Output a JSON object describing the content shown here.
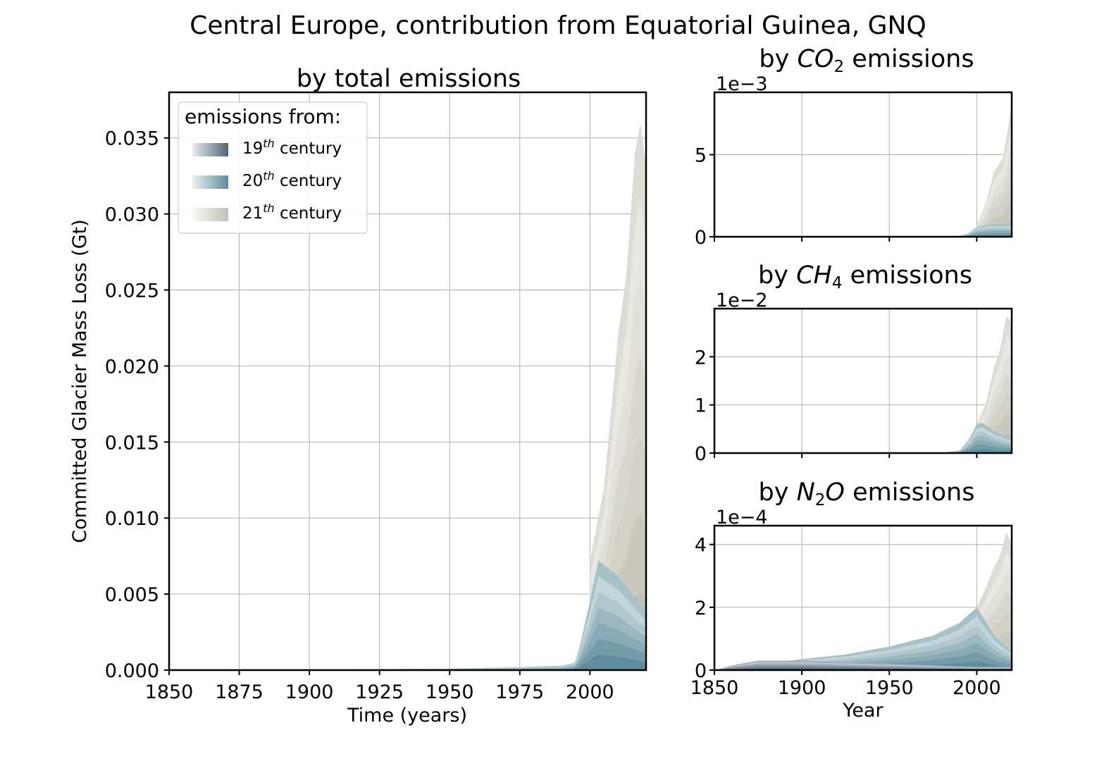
{
  "figure": {
    "suptitle": "Central Europe, contribution from Equatorial Guinea, GNQ"
  },
  "legend": {
    "title": "emissions from:",
    "entries": [
      {
        "num": "19",
        "sup": "th",
        "rest": " century",
        "color": "#4f6477"
      },
      {
        "num": "20",
        "sup": "th",
        "rest": " century",
        "color": "#5f8e9b"
      },
      {
        "num": "21",
        "sup": "th",
        "rest": " century",
        "color": "#c1c1b3"
      }
    ]
  },
  "colors": {
    "c19": "#4f6477",
    "c20": "#5f8e9b",
    "c21": "#c1c1b3",
    "grid": "#b0b0b0"
  },
  "chart_data": [
    {
      "id": "total",
      "type": "area",
      "title": "by total emissions",
      "xlabel": "Time (years)",
      "ylabel": "Committed Glacier Mass Loss (Gt)",
      "xlim": [
        1850,
        2020
      ],
      "ylim": [
        0,
        0.038
      ],
      "xticks": [
        1850,
        1875,
        1900,
        1925,
        1950,
        1975,
        2000
      ],
      "yticks": [
        "0.000",
        "0.005",
        "0.010",
        "0.015",
        "0.020",
        "0.025",
        "0.030",
        "0.035"
      ],
      "grid": true,
      "legend_position": "top-left",
      "series": [
        {
          "group": "19th century",
          "x": [
            1850,
            1870,
            1900,
            1950,
            2000,
            2020
          ],
          "y": [
            0,
            5e-05,
            4e-05,
            2e-05,
            1e-05,
            1e-05
          ]
        },
        {
          "group": "20th century",
          "x": [
            1850,
            1900,
            1950,
            1975,
            1990,
            1995,
            2000,
            2003,
            2010,
            2020
          ],
          "y": [
            0,
            3e-05,
            0.0001,
            0.0002,
            0.0003,
            0.0005,
            0.0045,
            0.0072,
            0.0062,
            0.0038
          ]
        },
        {
          "group": "21st century",
          "x": [
            2000,
            2005,
            2010,
            2013,
            2016,
            2018,
            2020
          ],
          "y": [
            0.0072,
            0.012,
            0.022,
            0.026,
            0.034,
            0.036,
            0.033
          ]
        }
      ]
    },
    {
      "id": "co2",
      "type": "area",
      "title_pre": "by ",
      "title_chem": "CO",
      "title_sub": "2",
      "title_post": " emissions",
      "exponent": "1e−3",
      "xlim": [
        1850,
        2020
      ],
      "ylim": [
        0,
        8.8
      ],
      "xticks": [
        1850,
        1900,
        1950,
        2000
      ],
      "yticks": [
        "0",
        "5"
      ],
      "grid": true,
      "series": [
        {
          "group": "20th century",
          "x": [
            1850,
            1980,
            1990,
            1995,
            2000,
            2005,
            2010,
            2020
          ],
          "y": [
            0,
            0.01,
            0.05,
            0.2,
            0.6,
            0.7,
            0.75,
            0.75
          ]
        },
        {
          "group": "21st century",
          "x": [
            2000,
            2005,
            2010,
            2015,
            2020
          ],
          "y": [
            0.7,
            2.0,
            4.0,
            4.8,
            8.0
          ]
        }
      ]
    },
    {
      "id": "ch4",
      "type": "area",
      "title_pre": "by ",
      "title_chem": "CH",
      "title_sub": "4",
      "title_post": " emissions",
      "exponent": "1e−2",
      "xlim": [
        1850,
        2020
      ],
      "ylim": [
        0,
        3.0
      ],
      "xticks": [
        1850,
        1900,
        1950,
        2000
      ],
      "yticks": [
        "0",
        "1",
        "2"
      ],
      "grid": true,
      "series": [
        {
          "group": "20th century",
          "x": [
            1850,
            1980,
            1990,
            1995,
            2000,
            2003,
            2010,
            2020
          ],
          "y": [
            0,
            0.01,
            0.05,
            0.25,
            0.6,
            0.63,
            0.45,
            0.3
          ]
        },
        {
          "group": "21st century",
          "x": [
            2000,
            2005,
            2010,
            2013,
            2017,
            2020
          ],
          "y": [
            0.6,
            1.0,
            1.8,
            2.1,
            2.85,
            2.7
          ]
        }
      ]
    },
    {
      "id": "n2o",
      "type": "area",
      "title_pre": "by ",
      "title_chem": "N",
      "title_sub": "2",
      "title_chem2": "O",
      "title_post": " emissions",
      "exponent": "1e−4",
      "xlabel": "Year",
      "xlim": [
        1850,
        2020
      ],
      "ylim": [
        0,
        4.6
      ],
      "xticks": [
        1850,
        1900,
        1950,
        2000
      ],
      "yticks": [
        "0",
        "2",
        "4"
      ],
      "grid": true,
      "series": [
        {
          "group": "19th century",
          "x": [
            1850,
            1860,
            1875,
            1900,
            1950,
            2000,
            2020
          ],
          "y": [
            0,
            0.15,
            0.3,
            0.3,
            0.2,
            0.1,
            0.1
          ]
        },
        {
          "group": "20th century",
          "x": [
            1850,
            1900,
            1925,
            1950,
            1975,
            1990,
            2000,
            2010,
            2020
          ],
          "y": [
            0,
            0.35,
            0.5,
            0.75,
            1.1,
            1.5,
            2.0,
            1.1,
            0.6
          ]
        },
        {
          "group": "21st century",
          "x": [
            2000,
            2005,
            2010,
            2013,
            2017,
            2020
          ],
          "y": [
            2.0,
            2.6,
            3.3,
            3.6,
            4.4,
            4.0
          ]
        }
      ]
    }
  ]
}
